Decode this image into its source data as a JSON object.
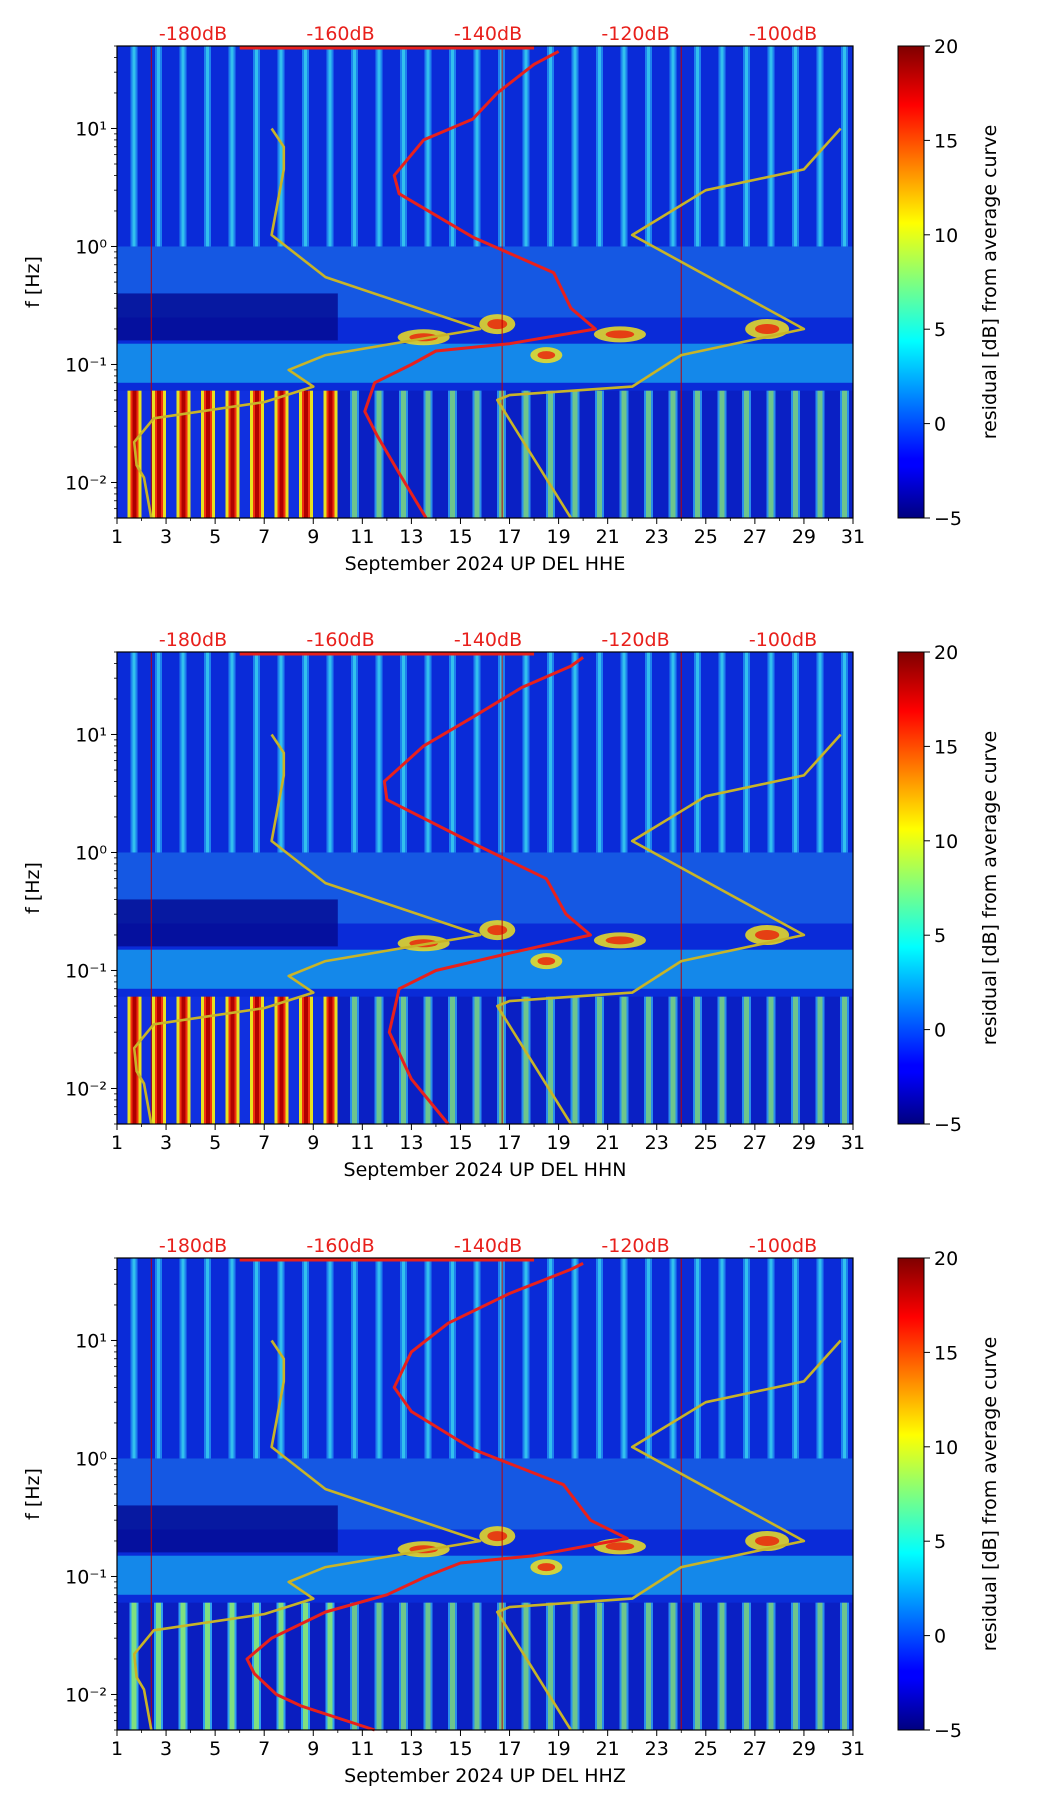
{
  "chart_data": [
    {
      "type": "heatmap",
      "title": "",
      "xlabel": "September 2024 UP DEL  HHE",
      "ylabel": "f [Hz]",
      "x_ticks": [
        1,
        3,
        5,
        7,
        9,
        11,
        13,
        15,
        17,
        19,
        21,
        23,
        25,
        27,
        29,
        31
      ],
      "y_ticks": [
        "10⁻²",
        "10⁻¹",
        "10⁰",
        "10¹"
      ],
      "y_tick_values": [
        0.01,
        0.1,
        1,
        10
      ],
      "xlim": [
        1,
        31
      ],
      "ylim": [
        0.005,
        50
      ],
      "db_scale_labels": [
        "-180dB",
        "-160dB",
        "-140dB",
        "-120dB",
        "-100dB"
      ],
      "colorbar": {
        "label": "residual [dB] from average curve",
        "min": -5,
        "max": 20,
        "ticks": [
          20,
          15,
          10,
          5,
          0,
          -5
        ]
      },
      "series": [
        {
          "name": "average PSD curve",
          "color": "#e8201c",
          "points": [
            [
              13.6,
              0.005
            ],
            [
              12.5,
              0.012
            ],
            [
              11.6,
              0.025
            ],
            [
              11.1,
              0.04
            ],
            [
              11.5,
              0.07
            ],
            [
              13.0,
              0.1
            ],
            [
              14.0,
              0.13
            ],
            [
              17.0,
              0.15
            ],
            [
              20.5,
              0.2
            ],
            [
              19.5,
              0.3
            ],
            [
              18.8,
              0.6
            ],
            [
              15.5,
              1.2
            ],
            [
              12.5,
              2.8
            ],
            [
              12.3,
              4
            ],
            [
              13.5,
              8
            ],
            [
              15.5,
              12
            ],
            [
              16.5,
              20
            ],
            [
              18.0,
              35
            ],
            [
              19.0,
              45
            ]
          ]
        },
        {
          "name": "noise model curve",
          "color": "#c8b428",
          "points": [
            [
              2.4,
              0.005
            ],
            [
              2.1,
              0.011
            ],
            [
              1.8,
              0.014
            ],
            [
              1.7,
              0.022
            ],
            [
              2.5,
              0.035
            ],
            [
              7.0,
              0.048
            ],
            [
              9.0,
              0.065
            ],
            [
              8.0,
              0.09
            ],
            [
              9.5,
              0.12
            ],
            [
              15.8,
              0.2
            ],
            [
              9.5,
              0.55
            ],
            [
              7.3,
              1.25
            ],
            [
              7.8,
              4.5
            ],
            [
              7.8,
              7
            ],
            [
              7.3,
              10
            ]
          ]
        },
        {
          "name": "noise model curve 2",
          "color": "#c8b428",
          "points": [
            [
              19.5,
              0.005
            ],
            [
              16.5,
              0.05
            ],
            [
              17.0,
              0.055
            ],
            [
              22.0,
              0.065
            ],
            [
              24.0,
              0.12
            ],
            [
              29.0,
              0.2
            ],
            [
              22.0,
              1.25
            ],
            [
              25.0,
              3
            ],
            [
              29.0,
              4.5
            ],
            [
              30.5,
              10
            ]
          ]
        }
      ]
    },
    {
      "type": "heatmap",
      "title": "",
      "xlabel": "September 2024 UP DEL  HHN",
      "ylabel": "f [Hz]",
      "x_ticks": [
        1,
        3,
        5,
        7,
        9,
        11,
        13,
        15,
        17,
        19,
        21,
        23,
        25,
        27,
        29,
        31
      ],
      "y_ticks": [
        "10⁻²",
        "10⁻¹",
        "10⁰",
        "10¹"
      ],
      "y_tick_values": [
        0.01,
        0.1,
        1,
        10
      ],
      "xlim": [
        1,
        31
      ],
      "ylim": [
        0.005,
        50
      ],
      "db_scale_labels": [
        "-180dB",
        "-160dB",
        "-140dB",
        "-120dB",
        "-100dB"
      ],
      "colorbar": {
        "label": "residual [dB] from average curve",
        "min": -5,
        "max": 20,
        "ticks": [
          20,
          15,
          10,
          5,
          0,
          -5
        ]
      },
      "series": [
        {
          "name": "average PSD curve",
          "color": "#e8201c",
          "points": [
            [
              14.5,
              0.005
            ],
            [
              13.0,
              0.012
            ],
            [
              12.1,
              0.03
            ],
            [
              12.5,
              0.07
            ],
            [
              14.0,
              0.1
            ],
            [
              17.0,
              0.14
            ],
            [
              20.3,
              0.2
            ],
            [
              19.3,
              0.3
            ],
            [
              18.5,
              0.6
            ],
            [
              15.5,
              1.2
            ],
            [
              12.0,
              2.8
            ],
            [
              11.9,
              4
            ],
            [
              13.5,
              8
            ],
            [
              15.5,
              14
            ],
            [
              17.5,
              25
            ],
            [
              19.5,
              38
            ],
            [
              20.0,
              45
            ]
          ]
        },
        {
          "name": "noise model curve",
          "color": "#c8b428",
          "points": [
            [
              2.4,
              0.005
            ],
            [
              2.1,
              0.011
            ],
            [
              1.8,
              0.014
            ],
            [
              1.7,
              0.022
            ],
            [
              2.5,
              0.035
            ],
            [
              7.0,
              0.048
            ],
            [
              9.0,
              0.065
            ],
            [
              8.0,
              0.09
            ],
            [
              9.5,
              0.12
            ],
            [
              15.8,
              0.2
            ],
            [
              9.5,
              0.55
            ],
            [
              7.3,
              1.25
            ],
            [
              7.8,
              4.5
            ],
            [
              7.8,
              7
            ],
            [
              7.3,
              10
            ]
          ]
        },
        {
          "name": "noise model curve 2",
          "color": "#c8b428",
          "points": [
            [
              19.5,
              0.005
            ],
            [
              16.5,
              0.05
            ],
            [
              17.0,
              0.055
            ],
            [
              22.0,
              0.065
            ],
            [
              24.0,
              0.12
            ],
            [
              29.0,
              0.2
            ],
            [
              22.0,
              1.25
            ],
            [
              25.0,
              3
            ],
            [
              29.0,
              4.5
            ],
            [
              30.5,
              10
            ]
          ]
        }
      ]
    },
    {
      "type": "heatmap",
      "title": "",
      "xlabel": "September 2024 UP DEL  HHZ",
      "ylabel": "f [Hz]",
      "x_ticks": [
        1,
        3,
        5,
        7,
        9,
        11,
        13,
        15,
        17,
        19,
        21,
        23,
        25,
        27,
        29,
        31
      ],
      "y_ticks": [
        "10⁻²",
        "10⁻¹",
        "10⁰",
        "10¹"
      ],
      "y_tick_values": [
        0.01,
        0.1,
        1,
        10
      ],
      "xlim": [
        1,
        31
      ],
      "ylim": [
        0.005,
        50
      ],
      "db_scale_labels": [
        "-180dB",
        "-160dB",
        "-140dB",
        "-120dB",
        "-100dB"
      ],
      "colorbar": {
        "label": "residual [dB] from average curve",
        "min": -5,
        "max": 20,
        "ticks": [
          20,
          15,
          10,
          5,
          0,
          -5
        ]
      },
      "series": [
        {
          "name": "average PSD curve",
          "color": "#e8201c",
          "points": [
            [
              11.5,
              0.005
            ],
            [
              8.5,
              0.008
            ],
            [
              7.5,
              0.01
            ],
            [
              6.6,
              0.015
            ],
            [
              6.3,
              0.02
            ],
            [
              7.3,
              0.03
            ],
            [
              9.5,
              0.05
            ],
            [
              12.0,
              0.07
            ],
            [
              13.6,
              0.1
            ],
            [
              15.0,
              0.13
            ],
            [
              18.0,
              0.15
            ],
            [
              21.8,
              0.21
            ],
            [
              20.3,
              0.3
            ],
            [
              19.2,
              0.6
            ],
            [
              15.5,
              1.2
            ],
            [
              13.0,
              2.5
            ],
            [
              12.3,
              4
            ],
            [
              13.0,
              8
            ],
            [
              14.5,
              14
            ],
            [
              17.0,
              25
            ],
            [
              19.5,
              40
            ],
            [
              20.0,
              45
            ]
          ]
        },
        {
          "name": "noise model curve",
          "color": "#c8b428",
          "points": [
            [
              2.4,
              0.005
            ],
            [
              2.1,
              0.011
            ],
            [
              1.8,
              0.014
            ],
            [
              1.7,
              0.022
            ],
            [
              2.5,
              0.035
            ],
            [
              7.0,
              0.048
            ],
            [
              9.0,
              0.065
            ],
            [
              8.0,
              0.09
            ],
            [
              9.5,
              0.12
            ],
            [
              15.8,
              0.2
            ],
            [
              9.5,
              0.55
            ],
            [
              7.3,
              1.25
            ],
            [
              7.8,
              4.5
            ],
            [
              7.8,
              7
            ],
            [
              7.3,
              10
            ]
          ]
        },
        {
          "name": "noise model curve 2",
          "color": "#c8b428",
          "points": [
            [
              19.5,
              0.005
            ],
            [
              16.5,
              0.05
            ],
            [
              17.0,
              0.055
            ],
            [
              22.0,
              0.065
            ],
            [
              24.0,
              0.12
            ],
            [
              29.0,
              0.2
            ],
            [
              22.0,
              1.25
            ],
            [
              25.0,
              3
            ],
            [
              29.0,
              4.5
            ],
            [
              30.5,
              10
            ]
          ]
        }
      ]
    }
  ]
}
